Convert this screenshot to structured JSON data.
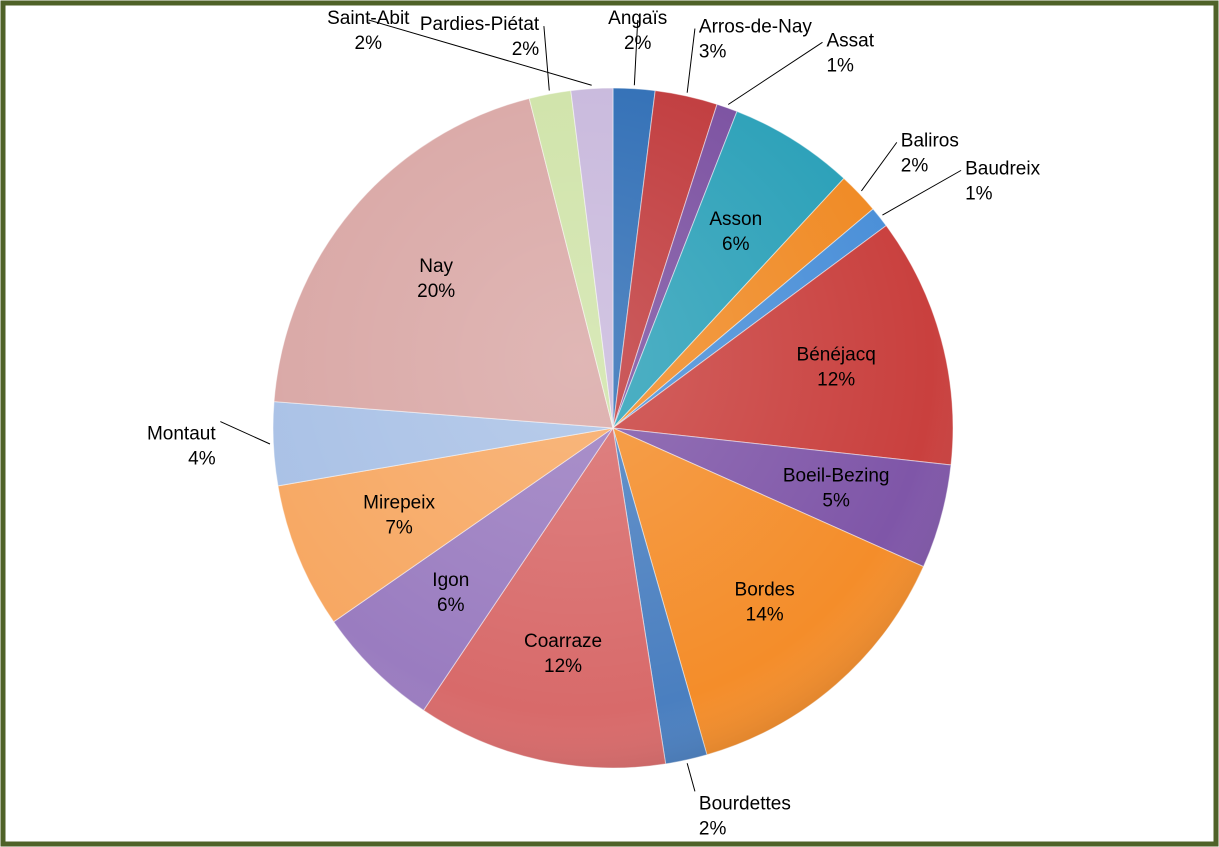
{
  "chart_data": {
    "type": "pie",
    "categories": [
      "Angaïs",
      "Arros-de-Nay",
      "Assat",
      "Asson",
      "Baliros",
      "Baudreix",
      "Bénéjacq",
      "Boeil-Bezing",
      "Bordes",
      "Bourdettes",
      "Coarraze",
      "Igon",
      "Mirepeix",
      "Montaut",
      "Nay",
      "Pardies-Piétat",
      "Saint-Abit"
    ],
    "values": [
      2,
      3,
      1,
      6,
      2,
      1,
      12,
      5,
      14,
      2,
      12,
      6,
      7,
      4,
      20,
      2,
      2
    ],
    "value_labels": [
      "2%",
      "3%",
      "1%",
      "6%",
      "2%",
      "1%",
      "12%",
      "5%",
      "14%",
      "2%",
      "12%",
      "6%",
      "7%",
      "4%",
      "20%",
      "2%",
      "2%"
    ],
    "colors": [
      "#2e6db5",
      "#c0393b",
      "#7a4fa0",
      "#2aa0b8",
      "#f08a24",
      "#4a8fd8",
      "#c9403e",
      "#7f56a8",
      "#f48d2a",
      "#4a7fc0",
      "#d86a6a",
      "#9a7cc0",
      "#f7a863",
      "#a9c1e6",
      "#d9a7a5",
      "#cfe3a8",
      "#c8b8dc"
    ]
  }
}
